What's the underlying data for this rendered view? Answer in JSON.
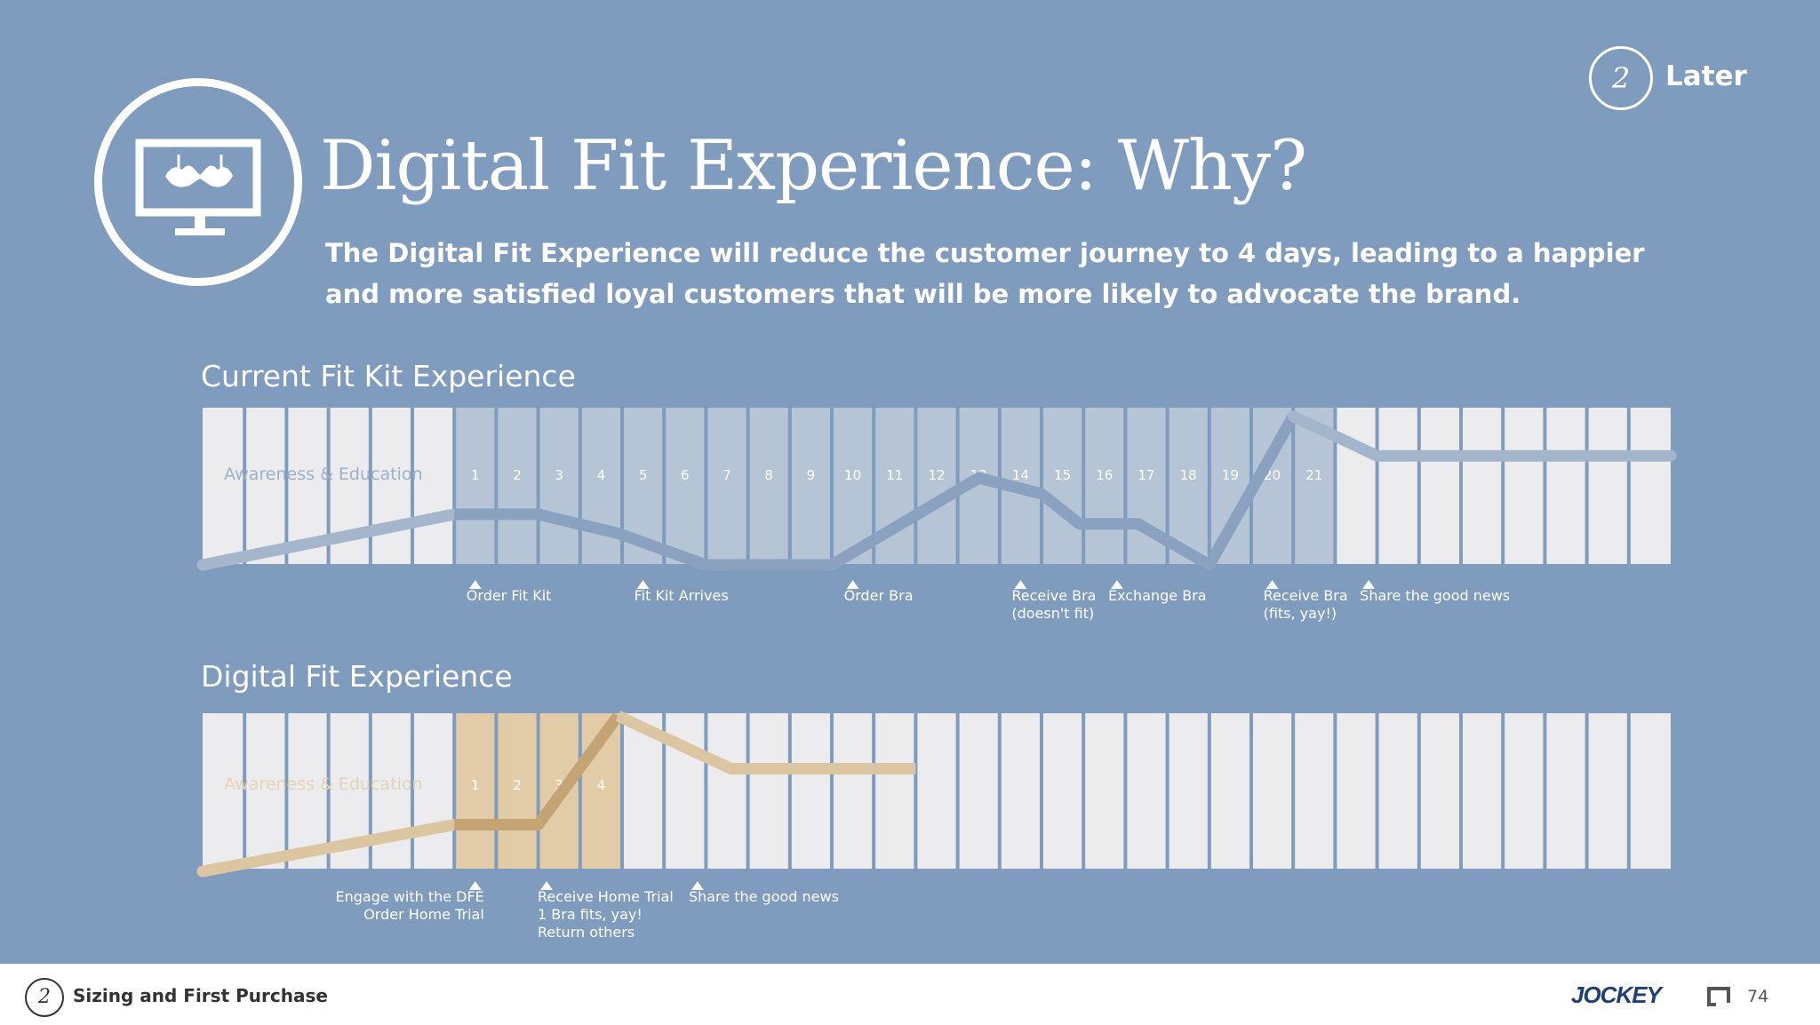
{
  "header": {
    "title": "Digital Fit Experience: Why?",
    "subtitle": "The Digital Fit Experience will reduce the customer journey to 4 days, leading to a happier and more satisfied loyal customers that will be more likely to advocate the brand.",
    "badge_number": "2",
    "badge_label": "Later",
    "logo_icon": "bra-on-monitor-icon"
  },
  "chart_data": [
    {
      "type": "line",
      "title": "Current Fit Kit Experience",
      "pre_label": "Awareness & Education",
      "days": [
        "1",
        "2",
        "3",
        "4",
        "5",
        "6",
        "7",
        "8",
        "9",
        "10",
        "11",
        "12",
        "13",
        "14",
        "15",
        "16",
        "17",
        "18",
        "19",
        "20",
        "21"
      ],
      "total_columns": 35,
      "pre_columns": 6,
      "highlighted_days": 21,
      "satisfaction_curve_y": [
        0.0,
        0.32,
        0.32,
        0.2,
        0.0,
        0.0,
        0.0,
        0.55,
        0.45,
        0.26,
        0.26,
        0.0,
        0.94,
        0.69,
        0.69
      ],
      "satisfaction_curve_x": [
        0,
        6,
        8,
        9.9,
        12,
        14,
        15,
        18.5,
        20,
        20.9,
        22.3,
        24,
        26,
        28,
        35
      ],
      "events": [
        {
          "label": "Order Fit Kit",
          "column": 6.5
        },
        {
          "label": "Fit Kit Arrives",
          "column": 10.5
        },
        {
          "label": "Order Bra",
          "column": 15.5
        },
        {
          "label": "Receive Bra\n(doesn't fit)",
          "column": 19.5
        },
        {
          "label": "Exchange Bra",
          "column": 21.8
        },
        {
          "label": "Receive Bra\n(fits, yay!)",
          "column": 25.5
        },
        {
          "label": "Share the good news",
          "column": 27.8
        }
      ]
    },
    {
      "type": "line",
      "title": "Digital Fit Experience",
      "pre_label": "Awareness & Education",
      "days": [
        "1",
        "2",
        "3",
        "4"
      ],
      "total_columns": 35,
      "pre_columns": 6,
      "highlighted_days": 4,
      "satisfaction_curve_y": [
        0.0,
        0.3,
        0.3,
        1.0,
        0.66,
        0.66
      ],
      "satisfaction_curve_x": [
        0,
        6,
        8,
        9.9,
        12.6,
        17
      ],
      "events": [
        {
          "label": "Engage with the DFE\nOrder Home Trial",
          "column": 6.5,
          "align": "right"
        },
        {
          "label": "Receive Home Trial\n1 Bra fits, yay!\nReturn others",
          "column": 8.2
        },
        {
          "label": "Share the good news",
          "column": 11.8
        }
      ]
    }
  ],
  "colors": {
    "background": "#7f9bbd",
    "cell": "#ececee",
    "current_highlight": "#b6c5d6",
    "current_line": "#8aa1bf",
    "current_line_pre": "#a5b6cc",
    "dfe_highlight": "#e2cca7",
    "dfe_line": "#c4a474",
    "dfe_line_post": "#dcc6a2"
  },
  "footer": {
    "badge_number": "2",
    "section": "Sizing and First Purchase",
    "brand": "JOCKEY",
    "page": "74"
  }
}
